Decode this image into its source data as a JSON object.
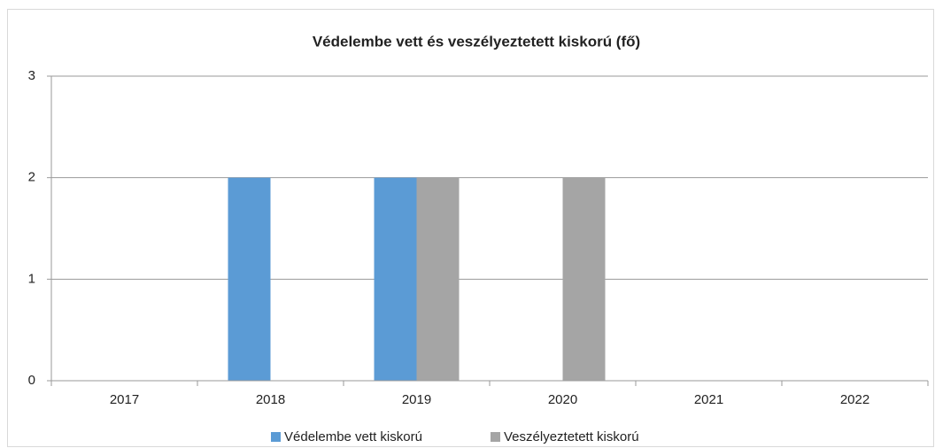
{
  "chart_data": {
    "type": "bar",
    "title": "Védelembe vett és veszélyeztetett kiskorú (fő)",
    "categories": [
      "2017",
      "2018",
      "2019",
      "2020",
      "2021",
      "2022"
    ],
    "series": [
      {
        "name": "Védelembe vett kiskorú",
        "color": "#5b9bd5",
        "values": [
          0,
          2,
          2,
          0,
          0,
          0
        ]
      },
      {
        "name": "Veszélyeztetett kiskorú",
        "color": "#a5a5a5",
        "values": [
          0,
          0,
          2,
          2,
          0,
          0
        ]
      }
    ],
    "ylim": [
      0,
      3
    ],
    "yticks": [
      0,
      1,
      2,
      3
    ],
    "grid": true,
    "legend": "bottom"
  }
}
